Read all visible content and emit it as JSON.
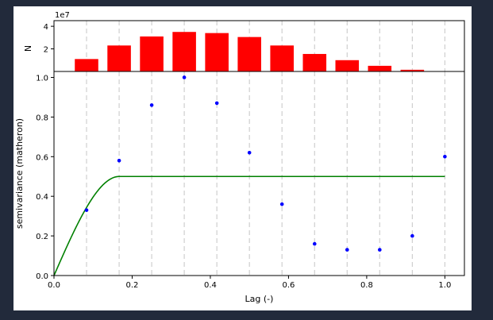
{
  "chart_data": {
    "type": "bar",
    "histogram": {
      "ylabel": "N",
      "offset_text": "1e7",
      "ylim": [
        0,
        45000000
      ],
      "yticks": [
        {
          "value": 20000000,
          "label": "2"
        },
        {
          "value": 40000000,
          "label": "4"
        }
      ],
      "bar_color": "#ff0000",
      "bars": [
        {
          "x": 0.0833,
          "value": 11000000
        },
        {
          "x": 0.1667,
          "value": 23000000
        },
        {
          "x": 0.25,
          "value": 31000000
        },
        {
          "x": 0.3333,
          "value": 35000000
        },
        {
          "x": 0.4167,
          "value": 34000000
        },
        {
          "x": 0.5,
          "value": 30500000
        },
        {
          "x": 0.5833,
          "value": 23000000
        },
        {
          "x": 0.6667,
          "value": 15500000
        },
        {
          "x": 0.75,
          "value": 10000000
        },
        {
          "x": 0.8333,
          "value": 5000000
        },
        {
          "x": 0.9167,
          "value": 1500000
        }
      ]
    },
    "variogram": {
      "xlabel": "Lag (-)",
      "ylabel": "semivariance (matheron)",
      "xlim": [
        0,
        1.05
      ],
      "ylim": [
        0,
        1.03
      ],
      "xticks": [
        {
          "value": 0.0,
          "label": "0.0"
        },
        {
          "value": 0.2,
          "label": "0.2"
        },
        {
          "value": 0.4,
          "label": "0.4"
        },
        {
          "value": 0.6,
          "label": "0.6"
        },
        {
          "value": 0.8,
          "label": "0.8"
        },
        {
          "value": 1.0,
          "label": "1.0"
        }
      ],
      "yticks": [
        {
          "value": 0.0,
          "label": "0.0"
        },
        {
          "value": 0.2,
          "label": "0.2"
        },
        {
          "value": 0.4,
          "label": "0.4"
        },
        {
          "value": 0.6,
          "label": "0.6"
        },
        {
          "value": 0.8,
          "label": "0.8"
        },
        {
          "value": 1.0,
          "label": "1.0"
        }
      ],
      "lag_lines": [
        0.0833,
        0.1667,
        0.25,
        0.3333,
        0.4167,
        0.5,
        0.5833,
        0.6667,
        0.75,
        0.8333,
        0.9167,
        1.0
      ],
      "points_color": "#0000ff",
      "points": [
        {
          "x": 0.0833,
          "y": 0.33
        },
        {
          "x": 0.1667,
          "y": 0.58
        },
        {
          "x": 0.25,
          "y": 0.86
        },
        {
          "x": 0.3333,
          "y": 1.0
        },
        {
          "x": 0.4167,
          "y": 0.87
        },
        {
          "x": 0.5,
          "y": 0.62
        },
        {
          "x": 0.5833,
          "y": 0.36
        },
        {
          "x": 0.6667,
          "y": 0.16
        },
        {
          "x": 0.75,
          "y": 0.13
        },
        {
          "x": 0.8333,
          "y": 0.13
        },
        {
          "x": 0.9167,
          "y": 0.2
        },
        {
          "x": 1.0,
          "y": 0.6
        }
      ],
      "model_color": "#008000",
      "model": {
        "kind": "spherical",
        "range": 0.1667,
        "sill": 0.5,
        "nugget": 0.0,
        "x_max": 1.0
      }
    },
    "grid": false
  }
}
